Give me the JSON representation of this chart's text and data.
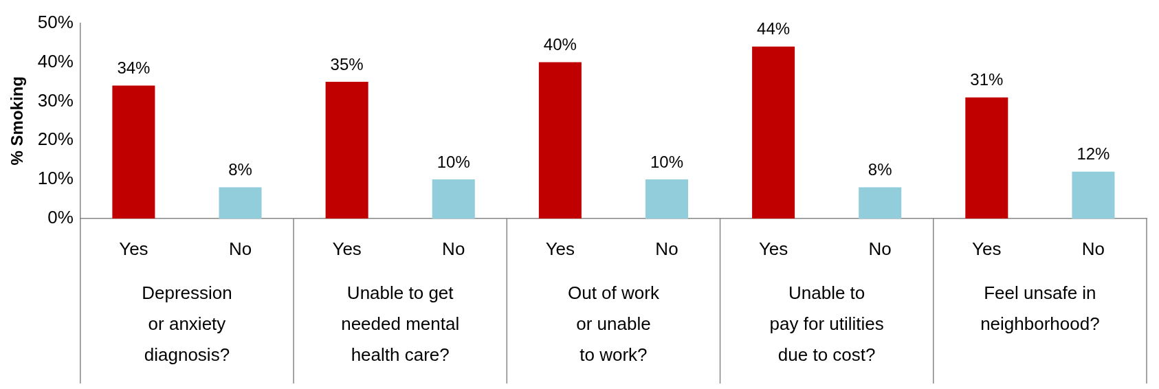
{
  "chart_data": {
    "type": "bar",
    "ylabel": "% Smoking",
    "categories": [
      "Yes",
      "No",
      "Yes",
      "No",
      "Yes",
      "No",
      "Yes",
      "No",
      "Yes",
      "No"
    ],
    "values": [
      34,
      8,
      35,
      10,
      40,
      10,
      44,
      8,
      31,
      12
    ],
    "colors": [
      "#c00000",
      "#92cddc",
      "#c00000",
      "#92cddc",
      "#c00000",
      "#92cddc",
      "#c00000",
      "#92cddc",
      "#c00000",
      "#92cddc"
    ],
    "value_labels": [
      "34%",
      "8%",
      "35%",
      "10%",
      "40%",
      "10%",
      "44%",
      "8%",
      "31%",
      "12%"
    ],
    "ylim": [
      0,
      50
    ],
    "yticks": [
      {
        "value": 0,
        "label": "0%"
      },
      {
        "value": 10,
        "label": "10%"
      },
      {
        "value": 20,
        "label": "20%"
      },
      {
        "value": 30,
        "label": "30%"
      },
      {
        "value": 40,
        "label": "40%"
      },
      {
        "value": 50,
        "label": "50%"
      }
    ],
    "annotations": [
      "Depression\nor anxiety\ndiagnosis?",
      "Unable to get\nneeded mental\nhealth care?",
      "Out of work\nor unable\nto work?",
      "Unable to\npay for utilities\ndue to cost?",
      "Feel unsafe in\nneighborhood?"
    ],
    "legend": false
  }
}
